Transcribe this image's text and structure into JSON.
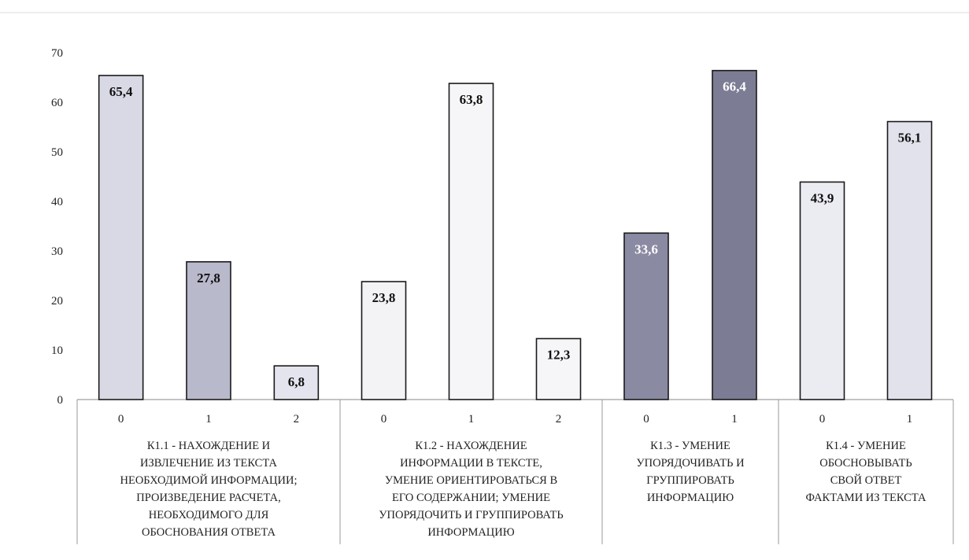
{
  "chart_data": {
    "type": "bar",
    "ylim": [
      0,
      70
    ],
    "yticks": [
      0,
      10,
      20,
      30,
      40,
      50,
      60,
      70
    ],
    "grid": false,
    "groups": [
      {
        "label": "К1.1 - НАХОЖДЕНИЕ И ИЗВЛЕЧЕНИЕ ИЗ ТЕКСТА НЕОБХОДИМОЙ ИНФОРМАЦИИ; ПРОИЗВЕДЕНИЕ РАСЧЕТА, НЕОБХОДИМОГО ДЛЯ ОБОСНОВАНИЯ ОТВЕТА",
        "label_lines": [
          "К1.1 - НАХОЖДЕНИЕ И",
          "ИЗВЛЕЧЕНИЕ ИЗ ТЕКСТА",
          "НЕОБХОДИМОЙ ИНФОРМАЦИИ;",
          "ПРОИЗВЕДЕНИЕ РАСЧЕТА,",
          "НЕОБХОДИМОГО ДЛЯ",
          "ОБОСНОВАНИЯ ОТВЕТА"
        ],
        "bars": [
          {
            "category": "0",
            "value": 65.4,
            "label": "65,4",
            "color": "#d9d9e6",
            "label_color": "#111111"
          },
          {
            "category": "1",
            "value": 27.8,
            "label": "27,8",
            "color": "#b9b9cc",
            "label_color": "#111111"
          },
          {
            "category": "2",
            "value": 6.8,
            "label": "6,8",
            "color": "#e4e4ee",
            "label_color": "#111111"
          }
        ]
      },
      {
        "label": "К1.2 - НАХОЖДЕНИЕ ИНФОРМАЦИИ В ТЕКСТЕ, УМЕНИЕ ОРИЕНТИРОВАТЬСЯ В ЕГО СОДЕРЖАНИИ; УМЕНИЕ УПОРЯДОЧИТЬ И ГРУППИРОВАТЬ ИНФОРМАЦИЮ",
        "label_lines": [
          "К1.2 - НАХОЖДЕНИЕ",
          "ИНФОРМАЦИИ В ТЕКСТЕ,",
          "УМЕНИЕ ОРИЕНТИРОВАТЬСЯ В",
          "ЕГО СОДЕРЖАНИИ; УМЕНИЕ",
          "УПОРЯДОЧИТЬ И ГРУППИРОВАТЬ",
          "ИНФОРМАЦИЮ"
        ],
        "bars": [
          {
            "category": "0",
            "value": 23.8,
            "label": "23,8",
            "color": "#f3f3f6",
            "label_color": "#111111"
          },
          {
            "category": "1",
            "value": 63.8,
            "label": "63,8",
            "color": "#f6f6f8",
            "label_color": "#111111"
          },
          {
            "category": "2",
            "value": 12.3,
            "label": "12,3",
            "color": "#f6f6f8",
            "label_color": "#111111"
          }
        ]
      },
      {
        "label": "К1.3 - УМЕНИЕ УПОРЯДОЧИВАТЬ И ГРУППИРОВАТЬ ИНФОРМАЦИЮ",
        "label_lines": [
          "К1.3 - УМЕНИЕ",
          "УПОРЯДОЧИВАТЬ И",
          "ГРУППИРОВАТЬ",
          "ИНФОРМАЦИЮ"
        ],
        "bars": [
          {
            "category": "0",
            "value": 33.6,
            "label": "33,6",
            "color": "#8a8aa3",
            "label_color": "#ffffff"
          },
          {
            "category": "1",
            "value": 66.4,
            "label": "66,4",
            "color": "#7c7c94",
            "label_color": "#ffffff"
          }
        ]
      },
      {
        "label": "К1.4 - УМЕНИЕ ОБОСНОВЫВАТЬ СВОЙ ОТВЕТ ФАКТАМИ ИЗ ТЕКСТА",
        "label_lines": [
          "К1.4 - УМЕНИЕ",
          "ОБОСНОВЫВАТЬ",
          "СВОЙ ОТВЕТ",
          "ФАКТАМИ  ИЗ ТЕКСТА"
        ],
        "bars": [
          {
            "category": "0",
            "value": 43.9,
            "label": "43,9",
            "color": "#ebebf2",
            "label_color": "#111111"
          },
          {
            "category": "1",
            "value": 56.1,
            "label": "56,1",
            "color": "#e2e2ec",
            "label_color": "#111111"
          }
        ]
      }
    ]
  }
}
